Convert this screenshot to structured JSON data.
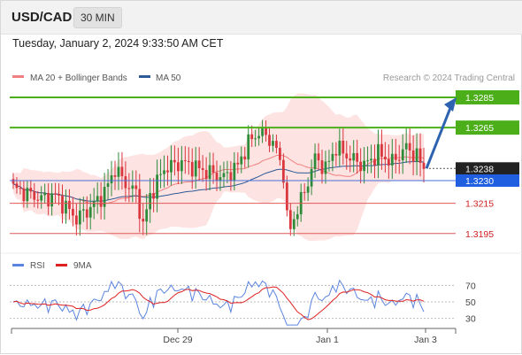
{
  "header": {
    "pair": "USD/CAD",
    "timeframe": "30 MIN",
    "timestamp": "Tuesday, January 2, 2024 9:33:50 AM CET"
  },
  "credit": "Research © 2024 Trading Central",
  "colors": {
    "ma20": "#f08080",
    "ma50": "#2e5a96",
    "band_fill": "#fde0df",
    "bull": "#2e8b3a",
    "bear": "#d9363e",
    "resistance": "#4caf1a",
    "support": "#e05858",
    "current": "#4a6fd8",
    "rsi": "#5b84e0",
    "rsi_ma": "#e02020",
    "arrow": "#2d62b0"
  },
  "chart_data": [
    {
      "type": "candlestick",
      "title": "USD/CAD",
      "interval": "30 MIN",
      "x_ticks": [
        "Dec 29",
        "Jan 1",
        "Jan 3"
      ],
      "ylim": [
        1.3182,
        1.3292
      ],
      "legend": [
        {
          "name": "MA 20 + Bollinger Bands",
          "color": "#f08080"
        },
        {
          "name": "MA 50",
          "color": "#2e5a96"
        }
      ],
      "levels": [
        {
          "value": 1.3285,
          "label": "1.3285",
          "kind": "resistance"
        },
        {
          "value": 1.3265,
          "label": "1.3265",
          "kind": "resistance"
        },
        {
          "value": 1.3238,
          "label": "1.3238",
          "kind": "last"
        },
        {
          "value": 1.323,
          "label": "1.3230",
          "kind": "pivot"
        },
        {
          "value": 1.3215,
          "label": "1.3215",
          "kind": "support"
        },
        {
          "value": 1.3195,
          "label": "1.3195",
          "kind": "support"
        }
      ],
      "projection": {
        "from": 1.3238,
        "to": 1.3285
      }
    },
    {
      "type": "line",
      "title": "",
      "legend": [
        {
          "name": "RSI",
          "color": "#5b84e0"
        },
        {
          "name": "9MA",
          "color": "#e02020"
        }
      ],
      "ylim": [
        20,
        80
      ],
      "y_ticks": [
        70,
        50,
        30
      ]
    }
  ]
}
